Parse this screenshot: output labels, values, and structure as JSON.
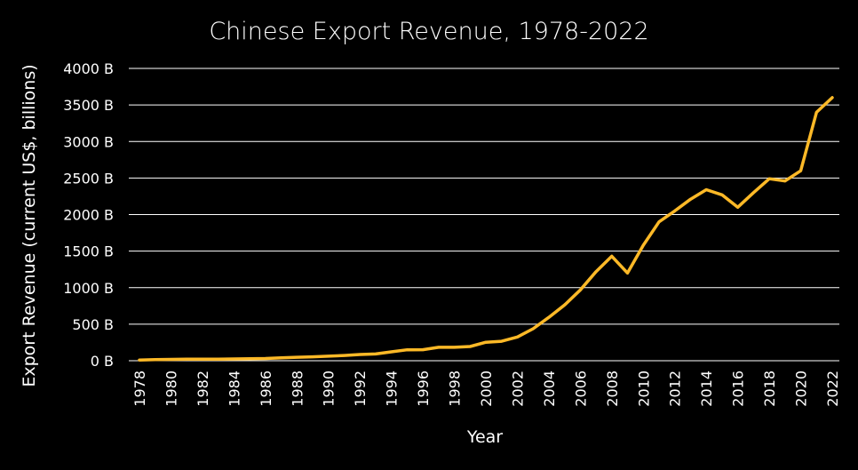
{
  "chart_data": {
    "type": "line",
    "title": "Chinese Export Revenue, 1978-2022",
    "xlabel": "Year",
    "ylabel": "Export Revenue  (current US$, billions)",
    "ylim": [
      0,
      4000
    ],
    "y_ticks": [
      "0 B",
      "500 B",
      "1000 B",
      "1500 B",
      "2000 B",
      "2500 B",
      "3000 B",
      "3500 B",
      "4000 B"
    ],
    "x_ticks": [
      "1978",
      "1980",
      "1982",
      "1984",
      "1986",
      "1988",
      "1990",
      "1992",
      "1994",
      "1996",
      "1998",
      "2000",
      "2002",
      "2004",
      "2006",
      "2008",
      "2010",
      "2012",
      "2014",
      "2016",
      "2018",
      "2020",
      "2022"
    ],
    "grid": "horizontal",
    "line_color": "#FDB927",
    "x": [
      1978,
      1979,
      1980,
      1981,
      1982,
      1983,
      1984,
      1985,
      1986,
      1987,
      1988,
      1989,
      1990,
      1991,
      1992,
      1993,
      1994,
      1995,
      1996,
      1997,
      1998,
      1999,
      2000,
      2001,
      2002,
      2003,
      2004,
      2005,
      2006,
      2007,
      2008,
      2009,
      2010,
      2011,
      2012,
      2013,
      2014,
      2015,
      2016,
      2017,
      2018,
      2019,
      2020,
      2021,
      2022
    ],
    "series": [
      {
        "values": [
          10,
          14,
          18,
          22,
          22,
          22,
          24,
          27,
          31,
          39,
          48,
          53,
          62,
          72,
          85,
          92,
          121,
          149,
          151,
          183,
          184,
          195,
          253,
          266,
          325,
          438,
          593,
          762,
          969,
          1220,
          1430,
          1200,
          1580,
          1900,
          2050,
          2210,
          2340,
          2270,
          2100,
          2300,
          2490,
          2460,
          2600,
          3400,
          3600
        ]
      }
    ]
  }
}
